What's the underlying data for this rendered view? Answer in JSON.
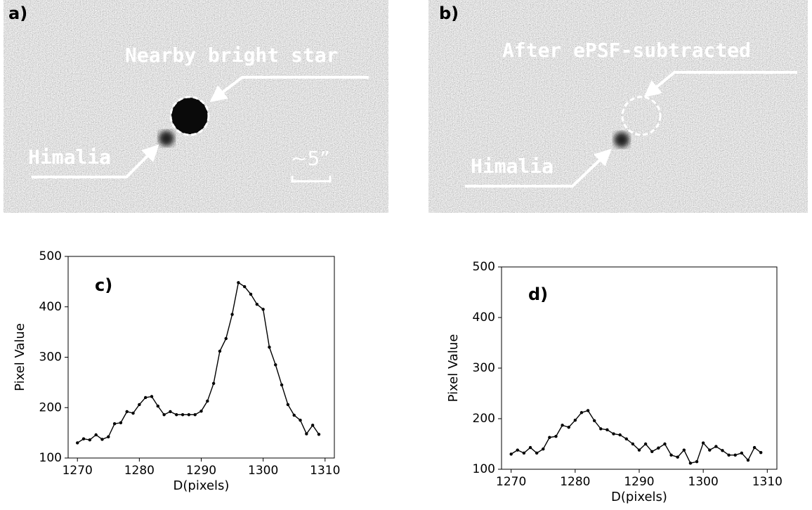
{
  "panels": [
    {
      "label": "a)",
      "annotations": [
        "Nearby bright star",
        "Himalia",
        "∼5”"
      ]
    },
    {
      "label": "b)",
      "annotations": [
        "After ePSF-subtracted",
        "Himalia"
      ]
    }
  ],
  "chart_data": [
    {
      "type": "line",
      "label": "c)",
      "xlabel": "D(pixels)",
      "ylabel": "Pixel Value",
      "color": "#000000",
      "markers": true,
      "x": [
        1270,
        1271,
        1272,
        1273,
        1274,
        1275,
        1276,
        1277,
        1278,
        1279,
        1280,
        1281,
        1282,
        1283,
        1284,
        1285,
        1286,
        1287,
        1288,
        1289,
        1290,
        1291,
        1292,
        1293,
        1294,
        1295,
        1296,
        1297,
        1298,
        1299,
        1300,
        1301,
        1302,
        1303,
        1304,
        1305,
        1306,
        1307,
        1308,
        1309
      ],
      "values": [
        130,
        138,
        136,
        146,
        137,
        142,
        168,
        170,
        192,
        189,
        206,
        220,
        222,
        203,
        186,
        192,
        186,
        186,
        186,
        186,
        193,
        213,
        248,
        312,
        337,
        385,
        448,
        440,
        425,
        405,
        395,
        320,
        285,
        245,
        206,
        185,
        175,
        148,
        165,
        147
      ],
      "xlim": [
        1268.5,
        1311.5
      ],
      "ylim": [
        100,
        500
      ],
      "xticks": [
        1270,
        1280,
        1290,
        1300,
        1310
      ],
      "yticks": [
        100,
        200,
        300,
        400,
        500
      ]
    },
    {
      "type": "line",
      "label": "d)",
      "xlabel": "D(pixels)",
      "ylabel": "Pixel Value",
      "color": "#000000",
      "markers": true,
      "x": [
        1270,
        1271,
        1272,
        1273,
        1274,
        1275,
        1276,
        1277,
        1278,
        1279,
        1280,
        1281,
        1282,
        1283,
        1284,
        1285,
        1286,
        1287,
        1288,
        1289,
        1290,
        1291,
        1292,
        1293,
        1294,
        1295,
        1296,
        1297,
        1298,
        1299,
        1300,
        1301,
        1302,
        1303,
        1304,
        1305,
        1306,
        1307,
        1308,
        1309
      ],
      "values": [
        130,
        138,
        132,
        143,
        132,
        140,
        163,
        165,
        187,
        183,
        197,
        212,
        216,
        196,
        180,
        178,
        170,
        168,
        160,
        150,
        138,
        150,
        135,
        142,
        150,
        128,
        124,
        138,
        112,
        115,
        152,
        138,
        145,
        137,
        128,
        128,
        132,
        118,
        143,
        133
      ],
      "xlim": [
        1268.5,
        1311.5
      ],
      "ylim": [
        100,
        500
      ],
      "xticks": [
        1270,
        1280,
        1290,
        1300,
        1310
      ],
      "yticks": [
        100,
        200,
        300,
        400,
        500
      ]
    }
  ]
}
